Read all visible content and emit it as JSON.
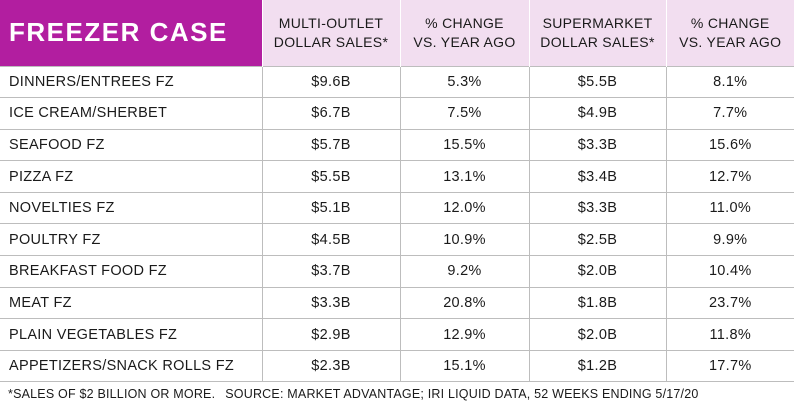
{
  "chart_data": {
    "type": "table",
    "title": "FREEZER CASE",
    "columns": [
      {
        "line1": "MULTI-OUTLET",
        "line2": "DOLLAR SALES*"
      },
      {
        "line1": "% CHANGE",
        "line2": "VS. YEAR AGO"
      },
      {
        "line1": "SUPERMARKET",
        "line2": "DOLLAR SALES*"
      },
      {
        "line1": "% CHANGE",
        "line2": "VS. YEAR AGO"
      }
    ],
    "rows": [
      {
        "category": "DINNERS/ENTREES FZ",
        "multi_outlet_sales": "$9.6B",
        "multi_outlet_change": "5.3%",
        "supermarket_sales": "$5.5B",
        "supermarket_change": "8.1%"
      },
      {
        "category": "ICE CREAM/SHERBET",
        "multi_outlet_sales": "$6.7B",
        "multi_outlet_change": "7.5%",
        "supermarket_sales": "$4.9B",
        "supermarket_change": "7.7%"
      },
      {
        "category": "SEAFOOD FZ",
        "multi_outlet_sales": "$5.7B",
        "multi_outlet_change": "15.5%",
        "supermarket_sales": "$3.3B",
        "supermarket_change": "15.6%"
      },
      {
        "category": "PIZZA FZ",
        "multi_outlet_sales": "$5.5B",
        "multi_outlet_change": "13.1%",
        "supermarket_sales": "$3.4B",
        "supermarket_change": "12.7%"
      },
      {
        "category": "NOVELTIES FZ",
        "multi_outlet_sales": "$5.1B",
        "multi_outlet_change": "12.0%",
        "supermarket_sales": "$3.3B",
        "supermarket_change": "11.0%"
      },
      {
        "category": "POULTRY FZ",
        "multi_outlet_sales": "$4.5B",
        "multi_outlet_change": "10.9%",
        "supermarket_sales": "$2.5B",
        "supermarket_change": "9.9%"
      },
      {
        "category": "BREAKFAST FOOD FZ",
        "multi_outlet_sales": "$3.7B",
        "multi_outlet_change": "9.2%",
        "supermarket_sales": "$2.0B",
        "supermarket_change": "10.4%"
      },
      {
        "category": "MEAT FZ",
        "multi_outlet_sales": "$3.3B",
        "multi_outlet_change": "20.8%",
        "supermarket_sales": "$1.8B",
        "supermarket_change": "23.7%"
      },
      {
        "category": "PLAIN VEGETABLES FZ",
        "multi_outlet_sales": "$2.9B",
        "multi_outlet_change": "12.9%",
        "supermarket_sales": "$2.0B",
        "supermarket_change": "11.8%"
      },
      {
        "category": "APPETIZERS/SNACK ROLLS FZ",
        "multi_outlet_sales": "$2.3B",
        "multi_outlet_change": "15.1%",
        "supermarket_sales": "$1.2B",
        "supermarket_change": "17.7%"
      }
    ],
    "footnote": "*SALES OF $2 BILLION OR MORE.",
    "source": "SOURCE: MARKET ADVANTAGE; IRI LIQUID DATA, 52 WEEKS ENDING 5/17/20",
    "colors": {
      "title_background": "#b21ea0",
      "header_background": "#f2def0",
      "title_text": "#ffffff",
      "row_divider": "#bdbdbd"
    }
  }
}
